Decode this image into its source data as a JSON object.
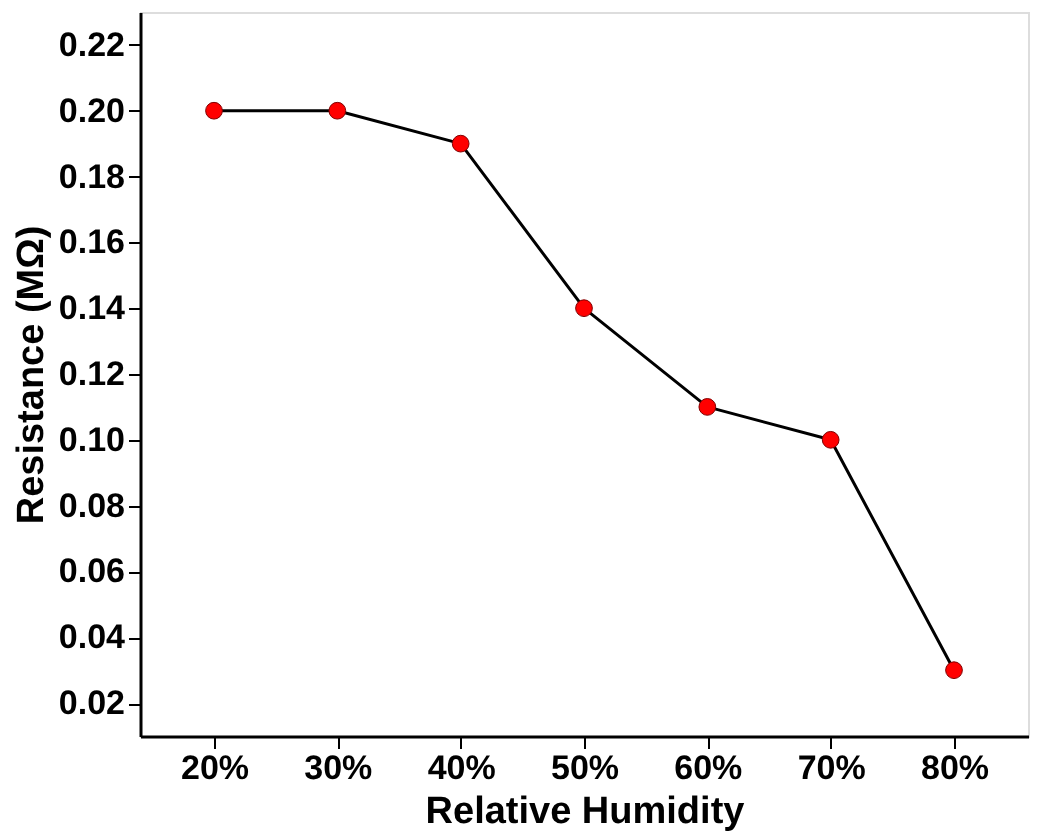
{
  "chart_data": {
    "type": "line",
    "xlabel": "Relative Humidity",
    "ylabel": "Resistance (MΩ)",
    "categories": [
      "20%",
      "30%",
      "40%",
      "50%",
      "60%",
      "70%",
      "80%"
    ],
    "series": [
      {
        "color": "#000000",
        "values": [
          0.2,
          0.2,
          0.19,
          0.14,
          0.11,
          0.1,
          0.03
        ]
      }
    ],
    "colors": [
      "#ff0000",
      "#ff0000",
      "#ff0000",
      "#ff0000",
      "#ff0000",
      "#ff0000",
      "#ff0000"
    ],
    "marker": "circle",
    "line_style": "solid",
    "ylim": [
      0.01,
      0.23
    ],
    "yticks": [
      {
        "value": 0.02,
        "label": "0.02"
      },
      {
        "value": 0.04,
        "label": "0.04"
      },
      {
        "value": 0.06,
        "label": "0.06"
      },
      {
        "value": 0.08,
        "label": "0.08"
      },
      {
        "value": 0.1,
        "label": "0.10"
      },
      {
        "value": 0.12,
        "label": "0.12"
      },
      {
        "value": 0.14,
        "label": "0.14"
      },
      {
        "value": 0.16,
        "label": "0.16"
      },
      {
        "value": 0.18,
        "label": "0.18"
      },
      {
        "value": 0.2,
        "label": "0.20"
      },
      {
        "value": 0.22,
        "label": "0.22"
      }
    ]
  }
}
